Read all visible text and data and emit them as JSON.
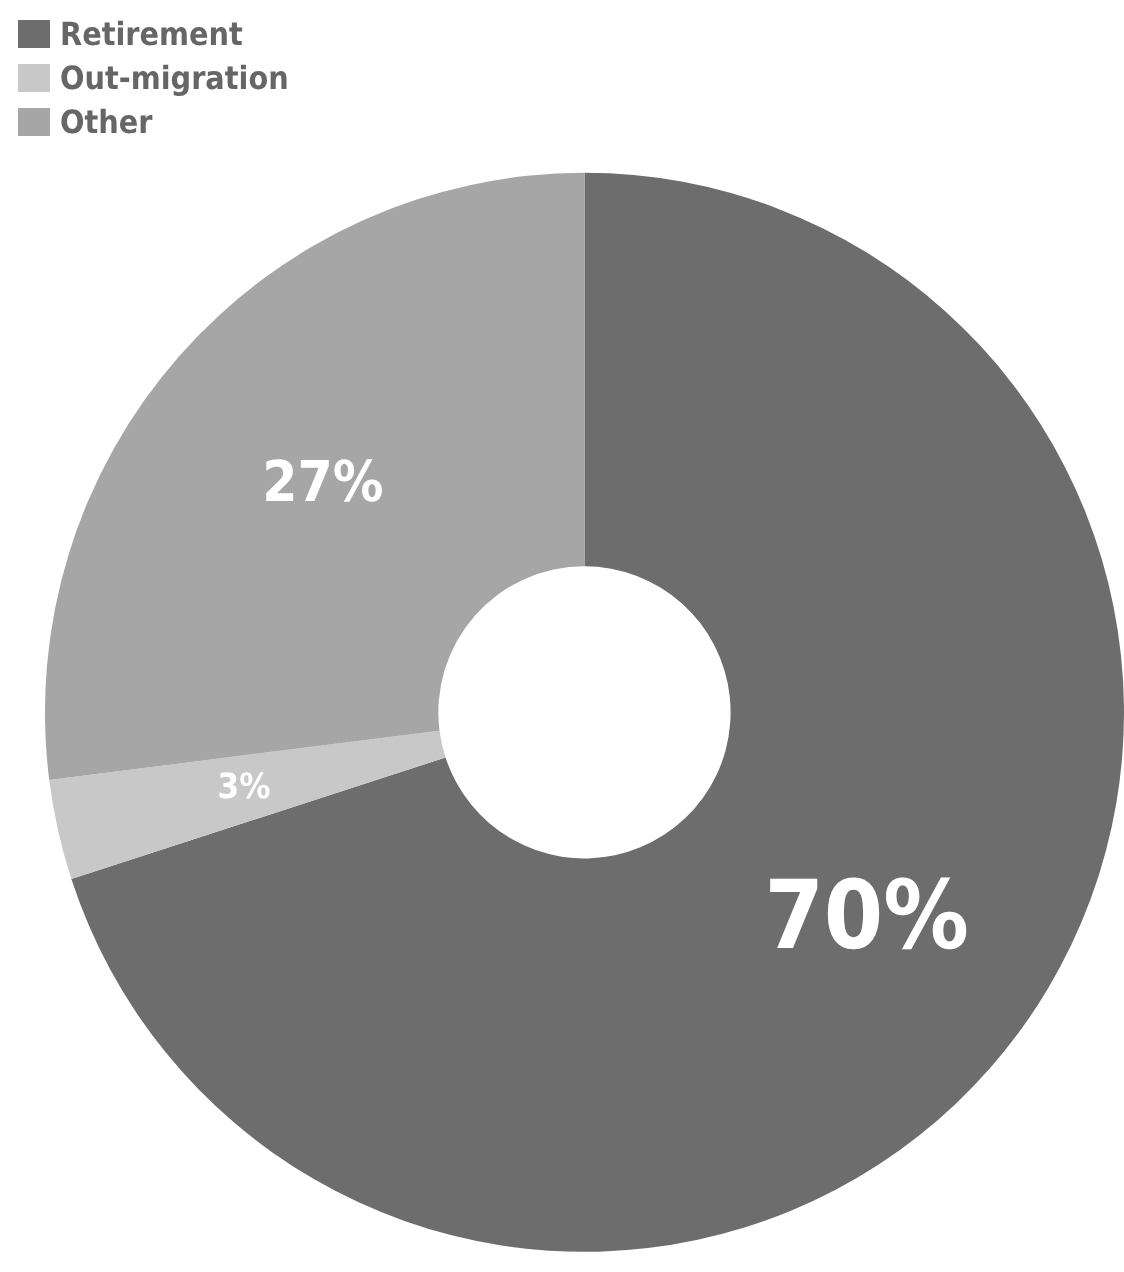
{
  "chart_data": {
    "type": "donut",
    "categories": [
      "Retirement",
      "Out-migration",
      "Other"
    ],
    "values": [
      70,
      3,
      27
    ],
    "colors": [
      "#6d6d6d",
      "#c8c8c8",
      "#a6a6a6"
    ],
    "value_labels": [
      "70%",
      "3%",
      "27%"
    ],
    "legend": "top left"
  }
}
